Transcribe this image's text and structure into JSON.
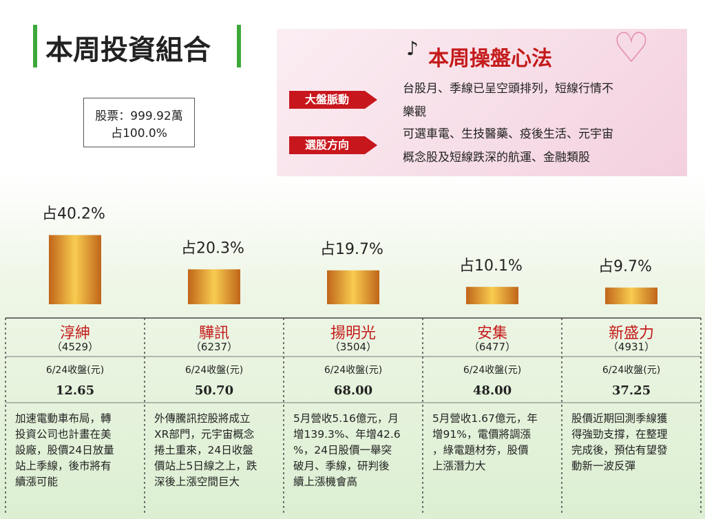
{
  "header": {
    "title": "本周投資組合"
  },
  "summary": {
    "lines": [
      "股票：999.92萬",
      "占100.0%"
    ]
  },
  "strategy": {
    "title": "本周操盤心法",
    "items": [
      {
        "label": "大盤脈動",
        "lines": [
          "台股月、季線已呈空頭排列，短線行情不",
          "樂觀"
        ]
      },
      {
        "label": "選股方向",
        "lines": [
          "可選車電、生技醫藥、疫後生活、元宇宙",
          "概念股及短線跌深的航運、金融類股"
        ]
      }
    ]
  },
  "chart_data": {
    "type": "bar",
    "categories": [
      "淳紳",
      "驊訊",
      "揚明光",
      "安集",
      "新盛力"
    ],
    "values": [
      40.2,
      20.3,
      19.7,
      10.1,
      9.7
    ],
    "value_labels": [
      "占40.2%",
      "占20.3%",
      "占19.7%",
      "占10.1%",
      "占9.7%"
    ],
    "color": "#e8a530"
  },
  "stocks": [
    {
      "code": "（4529）",
      "price_label": "6/24收盤(元)",
      "price": "12.65",
      "lines": [
        "加速電動車布局，轉",
        "投資公司也計畫在美",
        "設廠，股價24日放量",
        "站上季線，後市將有",
        "續漲可能"
      ]
    },
    {
      "code": "（6237）",
      "price_label": "6/24收盤(元)",
      "price": "50.70",
      "lines": [
        "外傳騰訊控股將成立",
        "XR部門，元宇宙概念",
        "捲土重來，24日收盤",
        "價站上5日線之上，跌",
        "深後上漲空間巨大"
      ]
    },
    {
      "code": "（3504）",
      "price_label": "6/24收盤(元)",
      "price": "68.00",
      "lines": [
        "5月營收5.16億元，月",
        "增139.3%、年增42.6",
        "%，24日股價一舉突",
        "破月、季線，研判後",
        "續上漲機會高"
      ]
    },
    {
      "code": "（6477）",
      "price_label": "6/24收盤(元)",
      "price": "48.00",
      "lines": [
        "5月營收1.67億元，年",
        "增91%，電價將調漲",
        "，綠電題材夯，股價",
        "上漲潛力大"
      ]
    },
    {
      "code": "（4931）",
      "price_label": "6/24收盤(元)",
      "price": "37.25",
      "lines": [
        "股價近期回測季線獲",
        "得強勁支撐，在整理",
        "完成後，預估有望發",
        "動新一波反彈"
      ]
    }
  ]
}
